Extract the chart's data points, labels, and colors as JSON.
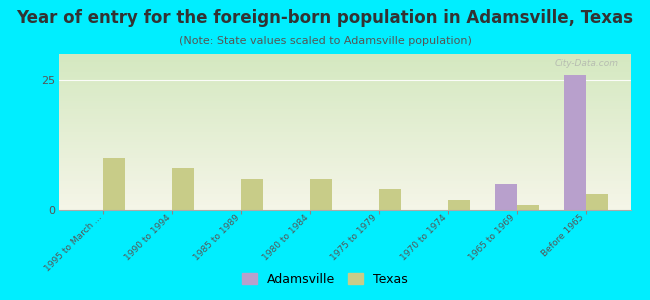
{
  "title": "Year of entry for the foreign-born population in Adamsville, Texas",
  "subtitle": "(Note: State values scaled to Adamsville population)",
  "categories": [
    "1995 to March ...",
    "1990 to 1994",
    "1985 to 1989",
    "1980 to 1984",
    "1975 to 1979",
    "1970 to 1974",
    "1965 to 1969",
    "Before 1965"
  ],
  "adamsville_values": [
    0,
    0,
    0,
    0,
    0,
    0,
    5,
    26
  ],
  "texas_values": [
    10,
    8,
    6,
    6,
    4,
    2,
    1,
    3
  ],
  "adamsville_color": "#b8a0cc",
  "texas_color": "#c8cc88",
  "background_color": "#00eeff",
  "plot_bg_top": "#d4e8c0",
  "plot_bg_bottom": "#f5f5e8",
  "ylim": [
    0,
    30
  ],
  "yticks": [
    0,
    25
  ],
  "bar_width": 0.32,
  "figsize": [
    6.5,
    3.0
  ],
  "dpi": 100,
  "title_fontsize": 12,
  "subtitle_fontsize": 8,
  "legend_labels": [
    "Adamsville",
    "Texas"
  ],
  "watermark": "City-Data.com"
}
